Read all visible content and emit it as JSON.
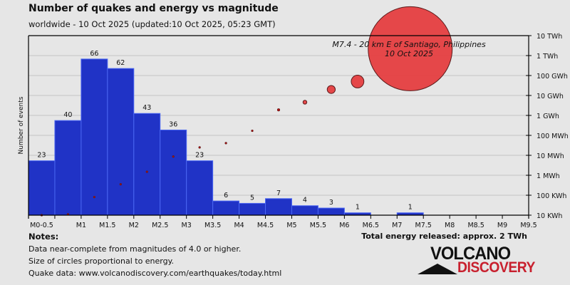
{
  "header": {
    "title": "Number of quakes and energy vs magnitude",
    "subtitle": "worldwide - 10 Oct 2025 (updated:10 Oct 2025, 05:23 GMT)"
  },
  "chart_data": {
    "type": "bar",
    "ylabel": "Number of events",
    "ylim": [
      0,
      76.5
    ],
    "xlim": [
      0,
      9.5
    ],
    "grid": true,
    "x_tick_labels": [
      "M0-0.5",
      "",
      "M1",
      "M1.5",
      "M2",
      "M2.5",
      "M3",
      "M3.5",
      "M4",
      "M4.5",
      "M5",
      "M5.5",
      "M6",
      "M6.5",
      "M7",
      "M7.5",
      "M8",
      "M8.5",
      "M9",
      "M9.5"
    ],
    "bins": [
      [
        0,
        0.5
      ],
      [
        0.5,
        1
      ],
      [
        1,
        1.5
      ],
      [
        1.5,
        2
      ],
      [
        2,
        2.5
      ],
      [
        2.5,
        3
      ],
      [
        3,
        3.5
      ],
      [
        3.5,
        4
      ],
      [
        4,
        4.5
      ],
      [
        4.5,
        5
      ],
      [
        5,
        5.5
      ],
      [
        5.5,
        6
      ],
      [
        6,
        6.5
      ],
      [
        6.5,
        7
      ],
      [
        7,
        7.5
      ]
    ],
    "counts": [
      23,
      40,
      66,
      62,
      43,
      36,
      23,
      6,
      5,
      7,
      4,
      3,
      1,
      0,
      1
    ],
    "energy_series": {
      "scale": "log",
      "unit": "kWh",
      "right_axis_ticks": [
        "10 KWh",
        "100 KWh",
        "1 MWh",
        "10 MWh",
        "100 MWh",
        "1 GWh",
        "10 GWh",
        "100 GWh",
        "1 TWh",
        "10 TWh"
      ],
      "magnitude": [
        0.25,
        0.75,
        1.25,
        1.75,
        2.25,
        2.75,
        3.25,
        3.75,
        4.25,
        4.75,
        5.25,
        5.75,
        6.25,
        7.25
      ],
      "energy_kwh": [
        10,
        11,
        81,
        355,
        1500,
        8700,
        25000,
        41000,
        170000,
        1900000,
        4600000,
        20000000,
        50000000,
        2200000000
      ]
    },
    "annotation": [
      "M7.4 - 20 km E of Santiago, Philippines",
      "10 Oct 2025"
    ],
    "colors": {
      "bar": "#2033c6",
      "bar_edge": "#4a66f2",
      "circle": "#e53e40",
      "circle_edge": "#5a1a1a"
    }
  },
  "notes": {
    "heading": "Notes:",
    "lines": [
      "Data near-complete from magnitudes of 4.0 or higher.",
      "Size of circles proportional to energy.",
      "Quake data: www.volcanodiscovery.com/earthquakes/today.html"
    ]
  },
  "total_energy": "Total energy released: approx. 2 TWh",
  "logo": {
    "line1": "VOLCANO",
    "line2": "DISCOVERY"
  }
}
